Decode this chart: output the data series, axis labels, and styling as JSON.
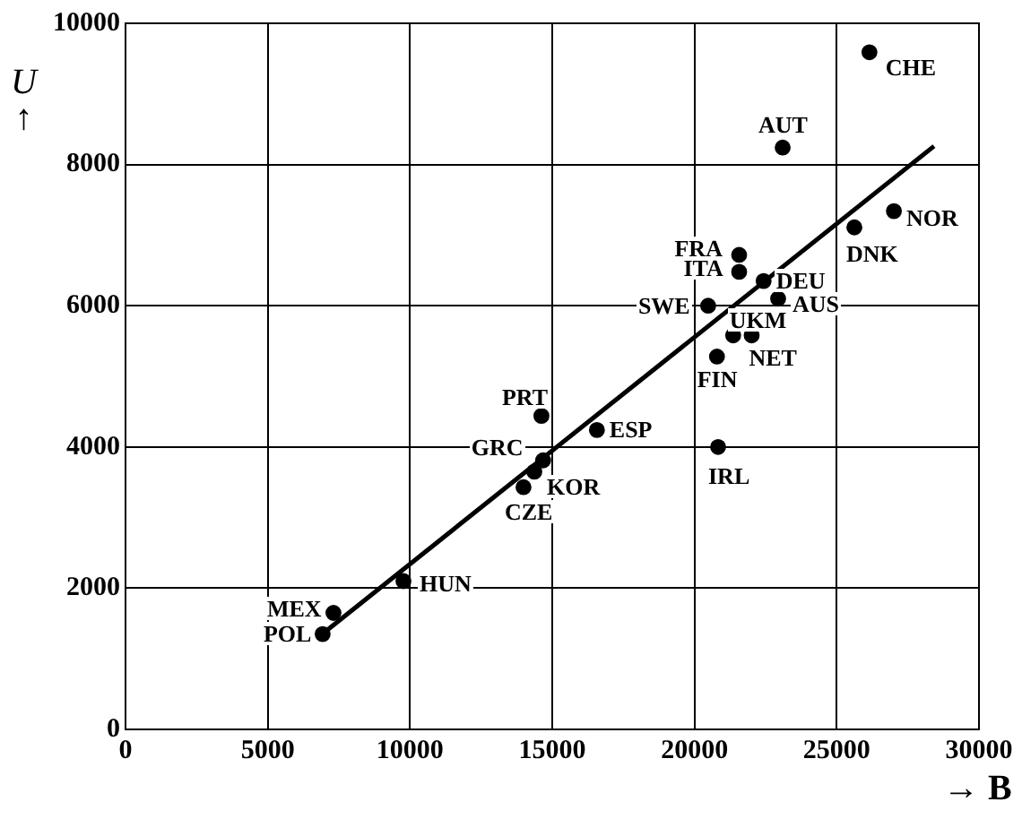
{
  "chart_data": {
    "type": "scatter",
    "xlabel": "→ B",
    "ylabel": "U ↑",
    "xlim": [
      0,
      30000
    ],
    "xticks": [
      0,
      5000,
      10000,
      15000,
      20000,
      25000,
      30000
    ],
    "ylim": [
      0,
      10000
    ],
    "yticks": [
      0,
      2000,
      4000,
      6000,
      8000,
      10000
    ],
    "grid": true,
    "marker": "circle",
    "series": [
      {
        "type": "scatter",
        "color": "#000000",
        "x": [
          26150,
          23100,
          27010,
          25620,
          21570,
          21570,
          22430,
          22940,
          20480,
          21360,
          22010,
          20790,
          20830,
          14620,
          16570,
          14680,
          14370,
          13990,
          9770,
          7310,
          6930
        ],
        "values": [
          9590,
          8240,
          7340,
          7110,
          6720,
          6480,
          6350,
          6100,
          6000,
          5580,
          5580,
          5280,
          4000,
          4440,
          4240,
          3810,
          3650,
          3430,
          2100,
          1650,
          1350
        ]
      },
      {
        "type": "line",
        "color": "#000000",
        "line_style": "solid",
        "marker": "none",
        "x": [
          6820,
          28420
        ],
        "values": [
          1320,
          8260
        ]
      }
    ],
    "annotations": [
      {
        "text": "CHE",
        "x": 26150,
        "y": 9590
      },
      {
        "text": "AUT",
        "x": 23100,
        "y": 8240
      },
      {
        "text": "NOR",
        "x": 27010,
        "y": 7340
      },
      {
        "text": "DNK",
        "x": 25620,
        "y": 7110
      },
      {
        "text": "FRA",
        "x": 21570,
        "y": 6720
      },
      {
        "text": "ITA",
        "x": 21570,
        "y": 6480
      },
      {
        "text": "DEU",
        "x": 22430,
        "y": 6350
      },
      {
        "text": "AUS",
        "x": 22940,
        "y": 6100
      },
      {
        "text": "SWE",
        "x": 20480,
        "y": 6000
      },
      {
        "text": "UKM",
        "x": 21360,
        "y": 5580
      },
      {
        "text": "NET",
        "x": 22010,
        "y": 5580
      },
      {
        "text": "FIN",
        "x": 20790,
        "y": 5280
      },
      {
        "text": "IRL",
        "x": 20830,
        "y": 4000
      },
      {
        "text": "PRT",
        "x": 14620,
        "y": 4440
      },
      {
        "text": "ESP",
        "x": 16570,
        "y": 4240
      },
      {
        "text": "GRC",
        "x": 14680,
        "y": 3810
      },
      {
        "text": "KOR",
        "x": 14370,
        "y": 3650
      },
      {
        "text": "CZE",
        "x": 13990,
        "y": 3430
      },
      {
        "text": "HUN",
        "x": 9770,
        "y": 2100
      },
      {
        "text": "MEX",
        "x": 7310,
        "y": 1650
      },
      {
        "text": "POL",
        "x": 6930,
        "y": 1350
      }
    ]
  }
}
